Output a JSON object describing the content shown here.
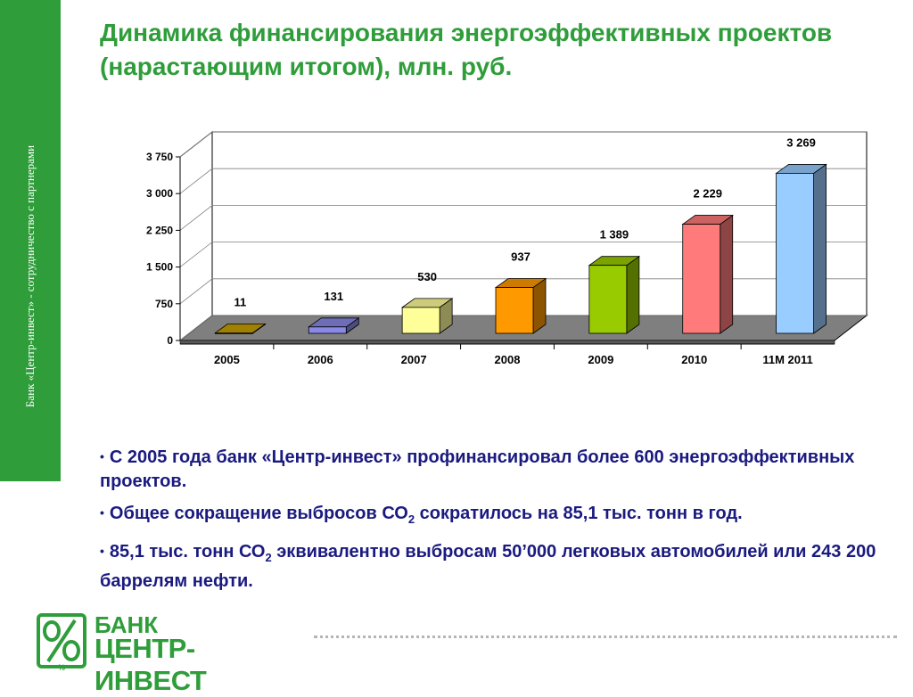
{
  "sidebar": {
    "text": "Банк «Центр-инвест» - сотрудничество с партнерами"
  },
  "title": "Динамика финансирования энергоэффективных проектов (нарастающим итогом), млн. руб.",
  "chart_data": {
    "type": "bar",
    "categories": [
      "2005",
      "2006",
      "2007",
      "2008",
      "2009",
      "2010",
      "11М 2011"
    ],
    "values": [
      11,
      131,
      530,
      937,
      1389,
      2229,
      3269
    ],
    "value_labels": [
      "11",
      "131",
      "530",
      "937",
      "1 389",
      "2 229",
      "3 269"
    ],
    "y_ticks": [
      "0",
      "750",
      "1 500",
      "2 250",
      "3 000",
      "3 750"
    ],
    "ylim": [
      0,
      3750
    ],
    "grid": true,
    "three_d": true,
    "colors": [
      "#c8a000",
      "#8a8ae6",
      "#ffff99",
      "#ff9900",
      "#99cc00",
      "#ff7b7b",
      "#99ccff"
    ]
  },
  "bullets": [
    {
      "text": "С 2005 года банк «Центр-инвест» профинансировал более 600 энергоэффективных проектов."
    },
    {
      "before": "Общее сокращение выбросов СО",
      "sub": "2",
      "after": " сократилось на 85,1 тыс. тонн в год."
    },
    {
      "before": "85,1 тыс. тонн СО",
      "sub": "2",
      "after": " эквивалентно выбросам 50’000 легковых автомобилей или 243 200 баррелям нефти."
    }
  ],
  "bullet_glyph": "•",
  "logo": {
    "line1": "БАНК",
    "line2": "ЦЕНТР-ИНВЕСТ",
    "emblem_text": "%"
  },
  "theme": {
    "green": "#2e9d3a",
    "text_blue": "#1a1a80"
  }
}
